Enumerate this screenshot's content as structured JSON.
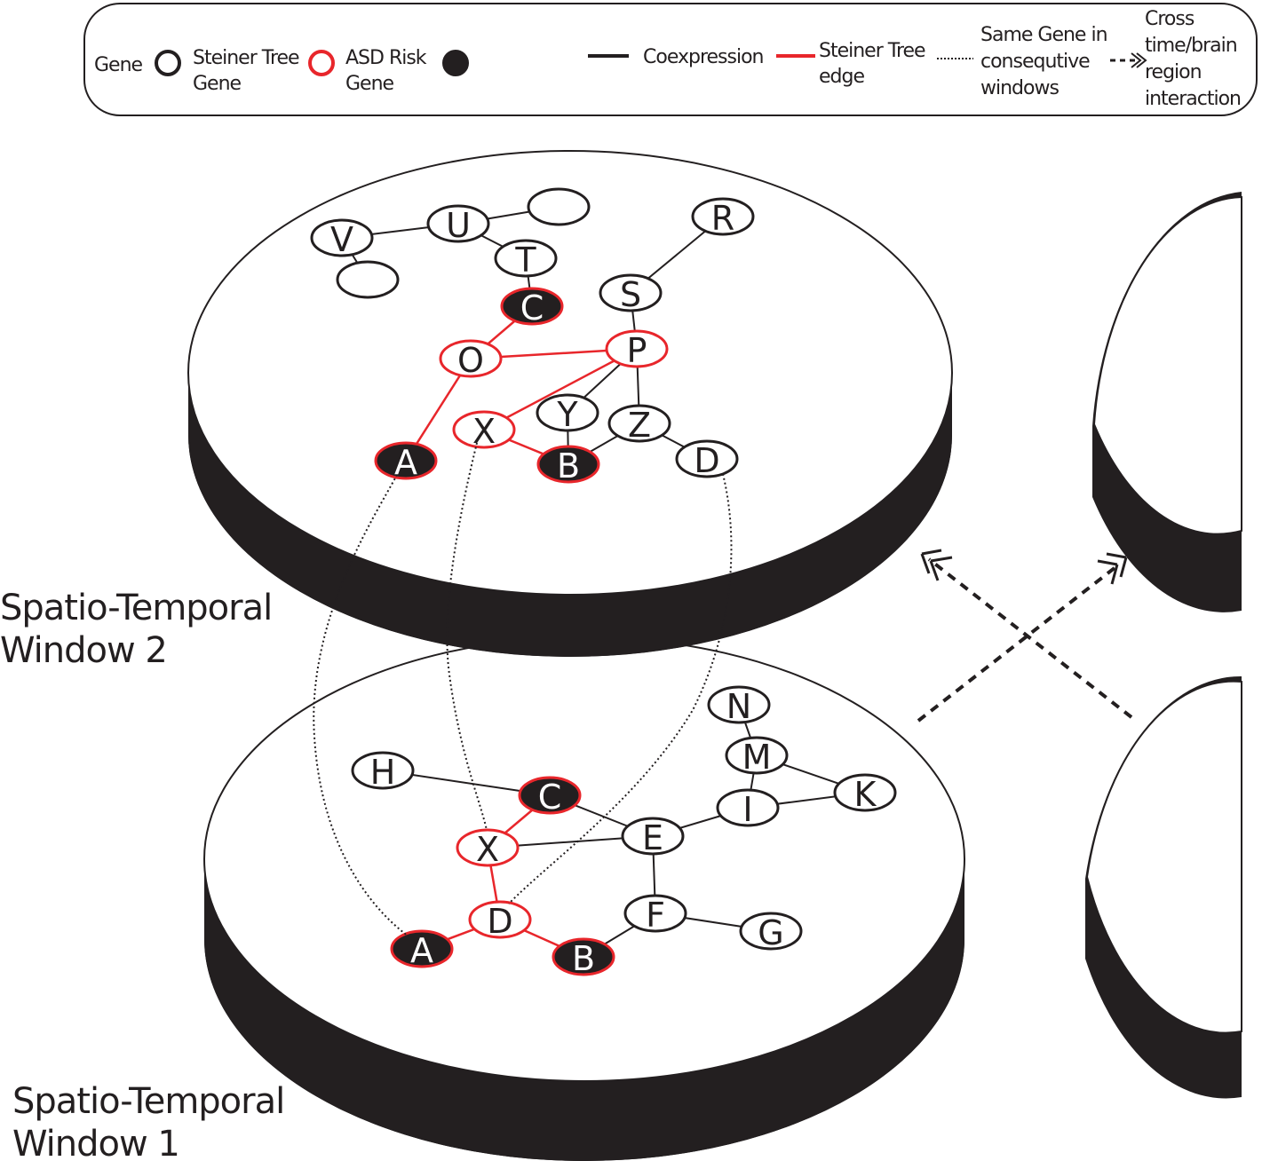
{
  "legend": {
    "gene": "Gene",
    "steiner_gene": [
      "Steiner Tree",
      "Gene"
    ],
    "asd_gene": [
      "ASD Risk",
      "Gene"
    ],
    "coexpression": "Coexpression",
    "steiner_edge": [
      "Steiner Tree",
      "edge"
    ],
    "same_gene": [
      "Same Gene in",
      "consequtive",
      "windows"
    ],
    "cross": [
      "Cross",
      "time/brain",
      "region",
      "interaction"
    ]
  },
  "windows": [
    {
      "id": "w2",
      "label": [
        "Spatio-Temporal",
        "Window 2"
      ],
      "nodes": [
        {
          "id": "V",
          "label": "V",
          "type": "gene"
        },
        {
          "id": "U",
          "label": "U",
          "type": "gene"
        },
        {
          "id": "e1",
          "label": "",
          "type": "gene"
        },
        {
          "id": "e2",
          "label": "",
          "type": "gene"
        },
        {
          "id": "T",
          "label": "T",
          "type": "gene"
        },
        {
          "id": "R",
          "label": "R",
          "type": "gene"
        },
        {
          "id": "S",
          "label": "S",
          "type": "gene"
        },
        {
          "id": "C",
          "label": "C",
          "type": "risk"
        },
        {
          "id": "O",
          "label": "O",
          "type": "steiner"
        },
        {
          "id": "P",
          "label": "P",
          "type": "steiner"
        },
        {
          "id": "Y",
          "label": "Y",
          "type": "gene"
        },
        {
          "id": "Z",
          "label": "Z",
          "type": "gene"
        },
        {
          "id": "X",
          "label": "X",
          "type": "steiner"
        },
        {
          "id": "A",
          "label": "A",
          "type": "risk"
        },
        {
          "id": "B",
          "label": "B",
          "type": "risk"
        },
        {
          "id": "D",
          "label": "D",
          "type": "gene"
        }
      ],
      "edges": [
        {
          "from": "V",
          "to": "U",
          "type": "coexpression"
        },
        {
          "from": "V",
          "to": "e2",
          "type": "coexpression"
        },
        {
          "from": "U",
          "to": "e1",
          "type": "coexpression"
        },
        {
          "from": "U",
          "to": "T",
          "type": "coexpression"
        },
        {
          "from": "T",
          "to": "C",
          "type": "coexpression"
        },
        {
          "from": "R",
          "to": "S",
          "type": "coexpression"
        },
        {
          "from": "S",
          "to": "P",
          "type": "coexpression"
        },
        {
          "from": "C",
          "to": "O",
          "type": "steiner"
        },
        {
          "from": "O",
          "to": "P",
          "type": "steiner"
        },
        {
          "from": "O",
          "to": "A",
          "type": "steiner"
        },
        {
          "from": "P",
          "to": "X",
          "type": "steiner"
        },
        {
          "from": "P",
          "to": "Y",
          "type": "coexpression"
        },
        {
          "from": "P",
          "to": "Z",
          "type": "coexpression"
        },
        {
          "from": "X",
          "to": "B",
          "type": "steiner"
        },
        {
          "from": "Y",
          "to": "B",
          "type": "coexpression"
        },
        {
          "from": "B",
          "to": "Z",
          "type": "coexpression"
        },
        {
          "from": "Z",
          "to": "D",
          "type": "coexpression"
        }
      ]
    },
    {
      "id": "w1",
      "label": [
        "Spatio-Temporal",
        "Window 1"
      ],
      "nodes": [
        {
          "id": "N",
          "label": "N",
          "type": "gene"
        },
        {
          "id": "M",
          "label": "M",
          "type": "gene"
        },
        {
          "id": "K",
          "label": "K",
          "type": "gene"
        },
        {
          "id": "I",
          "label": "I",
          "type": "gene"
        },
        {
          "id": "H",
          "label": "H",
          "type": "gene"
        },
        {
          "id": "C",
          "label": "C",
          "type": "risk"
        },
        {
          "id": "E",
          "label": "E",
          "type": "gene"
        },
        {
          "id": "X",
          "label": "X",
          "type": "steiner"
        },
        {
          "id": "F",
          "label": "F",
          "type": "gene"
        },
        {
          "id": "G",
          "label": "G",
          "type": "gene"
        },
        {
          "id": "D",
          "label": "D",
          "type": "steiner"
        },
        {
          "id": "A",
          "label": "A",
          "type": "risk"
        },
        {
          "id": "B",
          "label": "B",
          "type": "risk"
        }
      ],
      "edges": [
        {
          "from": "N",
          "to": "M",
          "type": "coexpression"
        },
        {
          "from": "M",
          "to": "I",
          "type": "coexpression"
        },
        {
          "from": "M",
          "to": "K",
          "type": "coexpression"
        },
        {
          "from": "I",
          "to": "K",
          "type": "coexpression"
        },
        {
          "from": "I",
          "to": "E",
          "type": "coexpression"
        },
        {
          "from": "H",
          "to": "C",
          "type": "coexpression"
        },
        {
          "from": "C",
          "to": "E",
          "type": "coexpression"
        },
        {
          "from": "C",
          "to": "X",
          "type": "steiner"
        },
        {
          "from": "X",
          "to": "E",
          "type": "coexpression"
        },
        {
          "from": "E",
          "to": "F",
          "type": "coexpression"
        },
        {
          "from": "F",
          "to": "G",
          "type": "coexpression"
        },
        {
          "from": "F",
          "to": "B",
          "type": "coexpression"
        },
        {
          "from": "X",
          "to": "D",
          "type": "steiner"
        },
        {
          "from": "D",
          "to": "A",
          "type": "steiner"
        },
        {
          "from": "D",
          "to": "B",
          "type": "steiner"
        }
      ]
    }
  ],
  "same_gene_links": [
    {
      "gene": "A"
    },
    {
      "gene": "X"
    },
    {
      "gene": "D"
    }
  ]
}
